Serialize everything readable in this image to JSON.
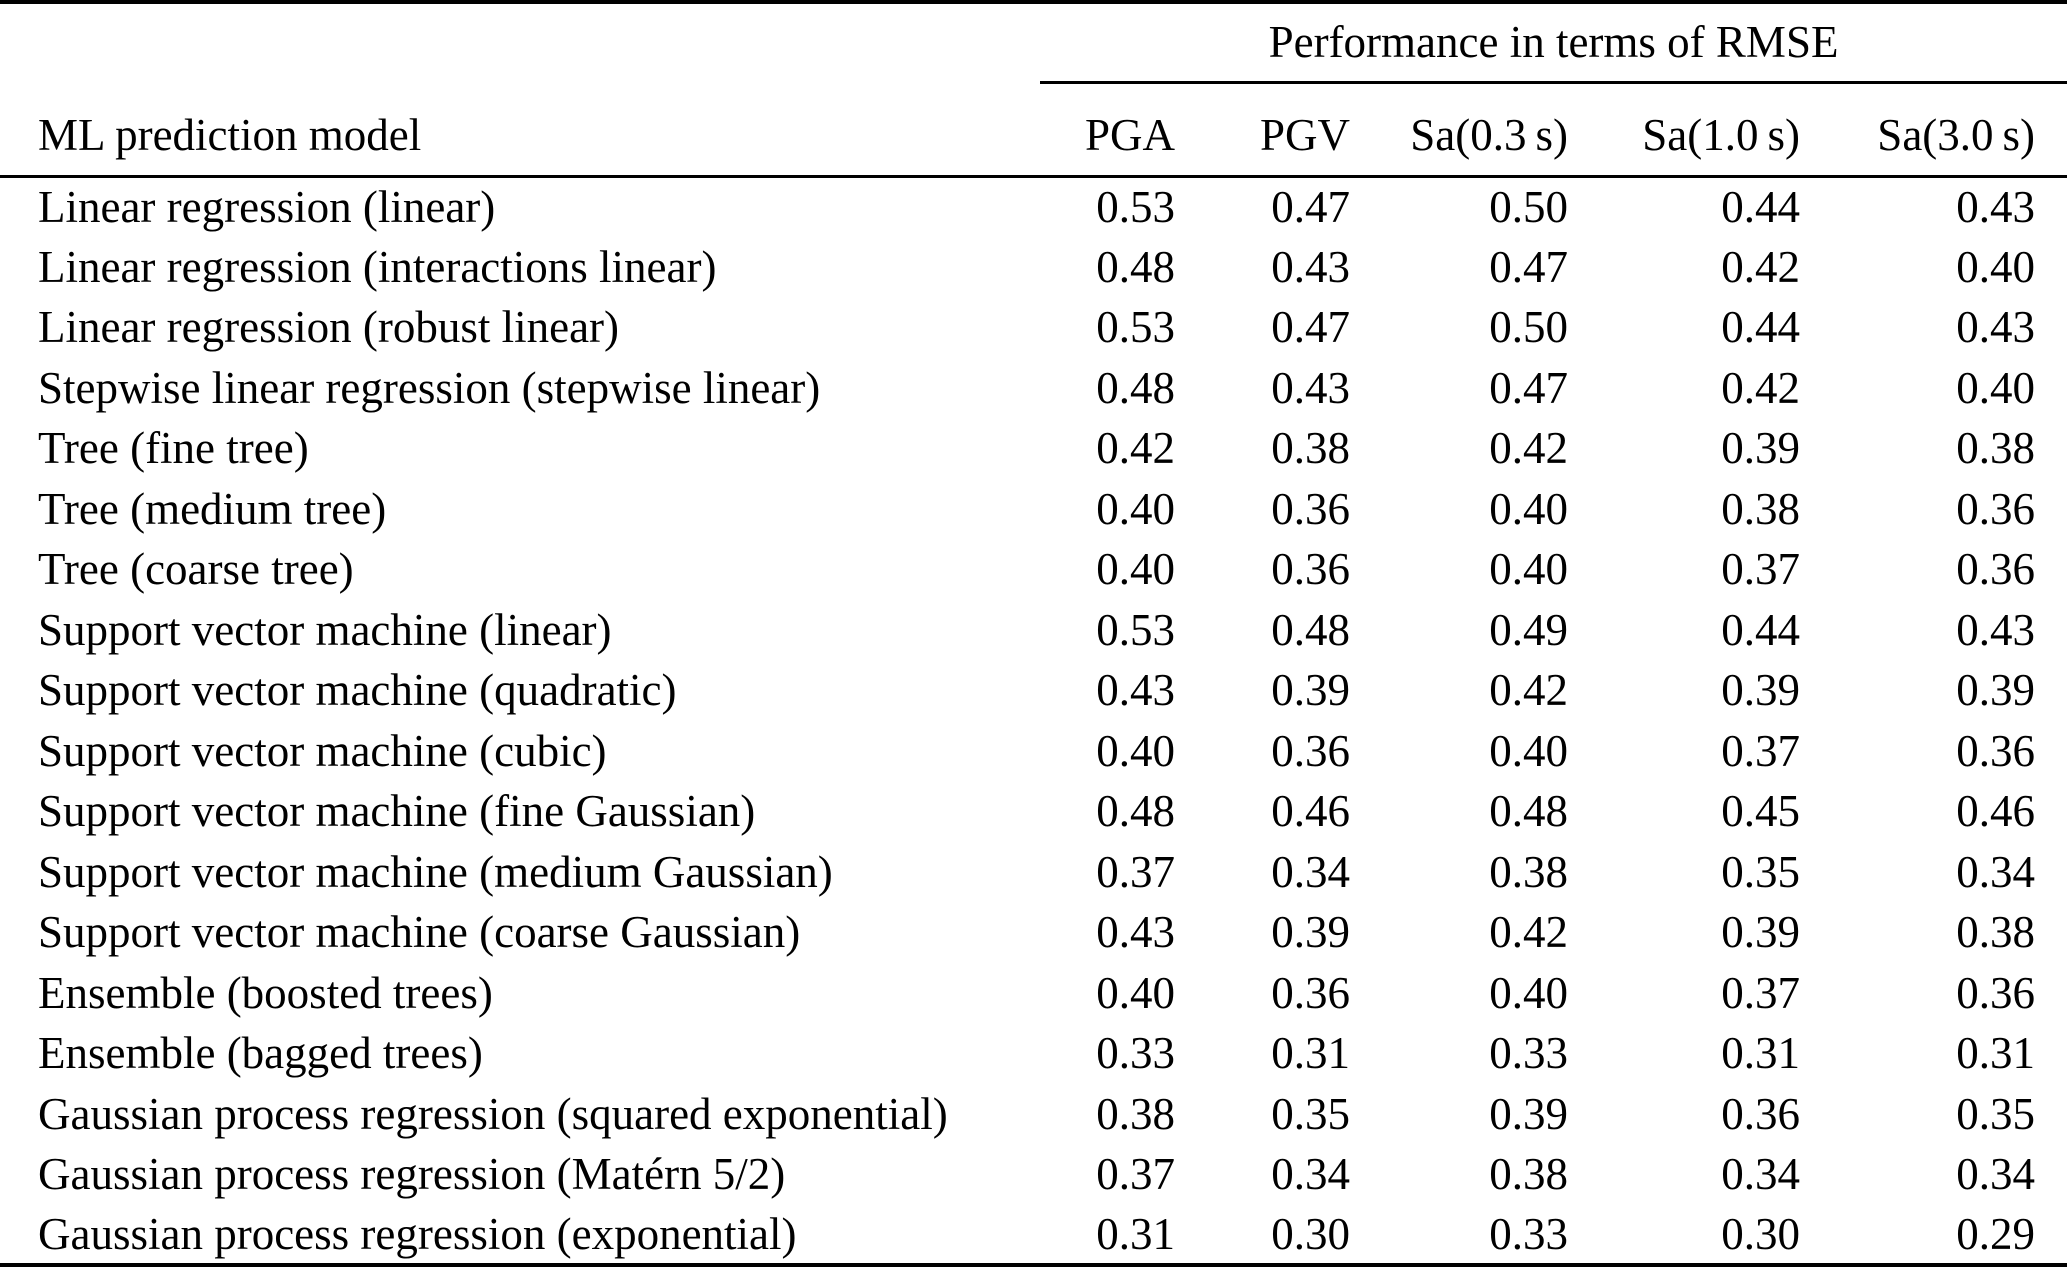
{
  "colors": {
    "background": "#ffffff",
    "text": "#000000",
    "rule": "#000000"
  },
  "table": {
    "spanner": "Performance in terms of RMSE",
    "columns": [
      "ML prediction model",
      "PGA",
      "PGV",
      "Sa(0.3 s)",
      "Sa(1.0 s)",
      "Sa(3.0 s)"
    ],
    "rows": [
      {
        "model": "Linear regression (linear)",
        "values": [
          "0.53",
          "0.47",
          "0.50",
          "0.44",
          "0.43"
        ]
      },
      {
        "model": "Linear regression (interactions linear)",
        "values": [
          "0.48",
          "0.43",
          "0.47",
          "0.42",
          "0.40"
        ]
      },
      {
        "model": "Linear regression (robust linear)",
        "values": [
          "0.53",
          "0.47",
          "0.50",
          "0.44",
          "0.43"
        ]
      },
      {
        "model": "Stepwise linear regression (stepwise linear)",
        "values": [
          "0.48",
          "0.43",
          "0.47",
          "0.42",
          "0.40"
        ]
      },
      {
        "model": "Tree (fine tree)",
        "values": [
          "0.42",
          "0.38",
          "0.42",
          "0.39",
          "0.38"
        ]
      },
      {
        "model": "Tree (medium tree)",
        "values": [
          "0.40",
          "0.36",
          "0.40",
          "0.38",
          "0.36"
        ]
      },
      {
        "model": "Tree (coarse tree)",
        "values": [
          "0.40",
          "0.36",
          "0.40",
          "0.37",
          "0.36"
        ]
      },
      {
        "model": "Support vector machine (linear)",
        "values": [
          "0.53",
          "0.48",
          "0.49",
          "0.44",
          "0.43"
        ]
      },
      {
        "model": "Support vector machine (quadratic)",
        "values": [
          "0.43",
          "0.39",
          "0.42",
          "0.39",
          "0.39"
        ]
      },
      {
        "model": "Support vector machine (cubic)",
        "values": [
          "0.40",
          "0.36",
          "0.40",
          "0.37",
          "0.36"
        ]
      },
      {
        "model": "Support vector machine (fine Gaussian)",
        "values": [
          "0.48",
          "0.46",
          "0.48",
          "0.45",
          "0.46"
        ]
      },
      {
        "model": "Support vector machine (medium Gaussian)",
        "values": [
          "0.37",
          "0.34",
          "0.38",
          "0.35",
          "0.34"
        ]
      },
      {
        "model": "Support vector machine (coarse Gaussian)",
        "values": [
          "0.43",
          "0.39",
          "0.42",
          "0.39",
          "0.38"
        ]
      },
      {
        "model": "Ensemble (boosted trees)",
        "values": [
          "0.40",
          "0.36",
          "0.40",
          "0.37",
          "0.36"
        ]
      },
      {
        "model": "Ensemble (bagged trees)",
        "values": [
          "0.33",
          "0.31",
          "0.33",
          "0.31",
          "0.31"
        ]
      },
      {
        "model": "Gaussian process regression (squared exponential)",
        "values": [
          "0.38",
          "0.35",
          "0.39",
          "0.36",
          "0.35"
        ]
      },
      {
        "model": "Gaussian process regression (Matérn 5/2)",
        "values": [
          "0.37",
          "0.34",
          "0.38",
          "0.34",
          "0.34"
        ]
      },
      {
        "model": "Gaussian process regression (exponential)",
        "values": [
          "0.31",
          "0.30",
          "0.33",
          "0.30",
          "0.29"
        ]
      }
    ]
  }
}
